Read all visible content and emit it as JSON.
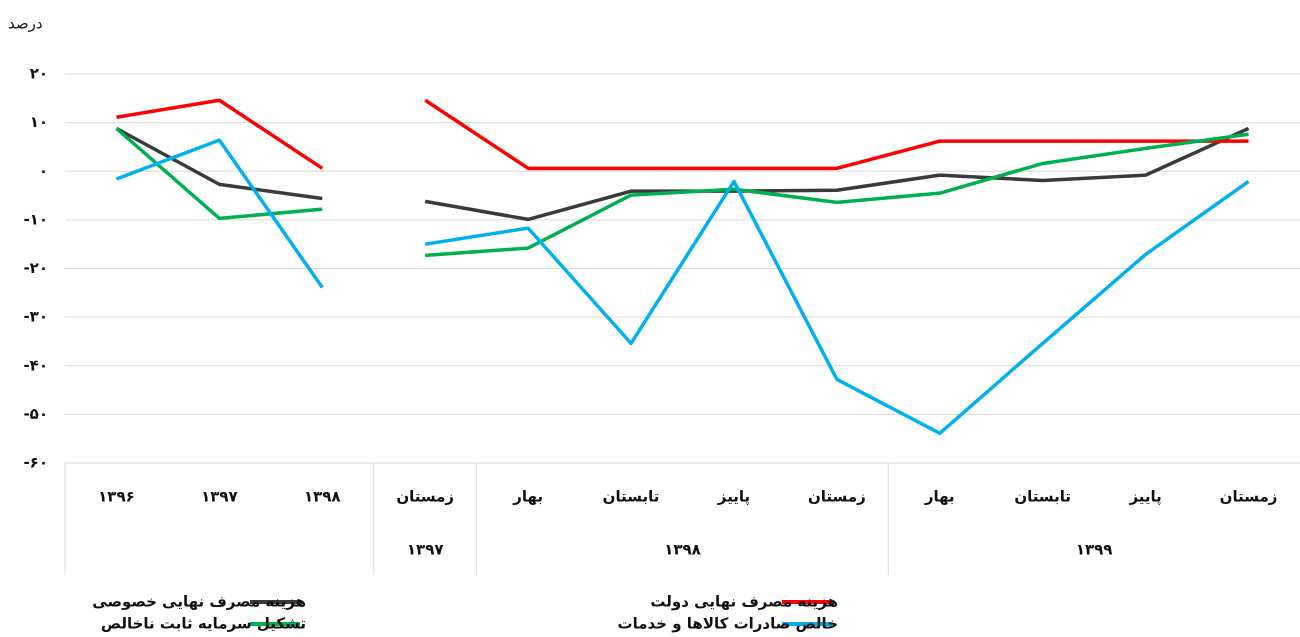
{
  "chart_data": {
    "type": "line",
    "y_label": "درصد",
    "categories": [
      "۱۳۹۶",
      "۱۳۹۷",
      "۱۳۹۸",
      "زمستان",
      "بهار",
      "تابستان",
      "پاییز",
      "زمستان",
      "بهار",
      "تابستان",
      "پاییز",
      "زمستان"
    ],
    "x_groups": [
      {
        "label": "۱۳۹۷",
        "from": 3,
        "to": 3
      },
      {
        "label": "۱۳۹۸",
        "from": 4,
        "to": 7
      },
      {
        "label": "۱۳۹۹",
        "from": 8,
        "to": 11
      }
    ],
    "line_breaks_before": [
      3
    ],
    "series": [
      {
        "name": "هزینه مصرف نهایی خصوصی",
        "color": "#3a3a3a",
        "values": [
          8.8,
          -2.7,
          -5.6,
          -6.2,
          -9.9,
          -4.1,
          -4.1,
          -3.9,
          -0.8,
          -1.9,
          -0.8,
          8.8
        ]
      },
      {
        "name": "هزینه مصرف نهایی دولت",
        "color": "#ff0000",
        "values": [
          11.1,
          14.6,
          0.6,
          14.6,
          0.6,
          0.6,
          0.6,
          0.6,
          6.2,
          6.2,
          6.2,
          6.2
        ]
      },
      {
        "name": "تشکیل سرمایه ثابت ناخالص",
        "color": "#00b050",
        "values": [
          8.8,
          -9.7,
          -7.8,
          -17.3,
          -15.8,
          -4.9,
          -3.7,
          -6.4,
          -4.5,
          1.6,
          4.7,
          7.6
        ]
      },
      {
        "name": "خالص صادرات کالاها و خدمات",
        "color": "#00b0f0",
        "values": [
          -1.6,
          6.4,
          -23.9,
          -15.0,
          -11.7,
          -35.4,
          -2.1,
          -42.8,
          -53.9,
          -35.4,
          -17.1,
          -2.1
        ]
      }
    ],
    "ylim": [
      -60,
      20
    ],
    "yticks": [
      {
        "value": 20,
        "label": "۲۰"
      },
      {
        "value": 10,
        "label": "۱۰"
      },
      {
        "value": 0,
        "label": "۰"
      },
      {
        "value": -10,
        "label": "-۱۰"
      },
      {
        "value": -20,
        "label": "-۲۰"
      },
      {
        "value": -30,
        "label": "-۳۰"
      },
      {
        "value": -40,
        "label": "-۴۰"
      },
      {
        "value": -50,
        "label": "-۵۰"
      },
      {
        "value": -60,
        "label": "-۶۰"
      }
    ],
    "grid": true
  }
}
